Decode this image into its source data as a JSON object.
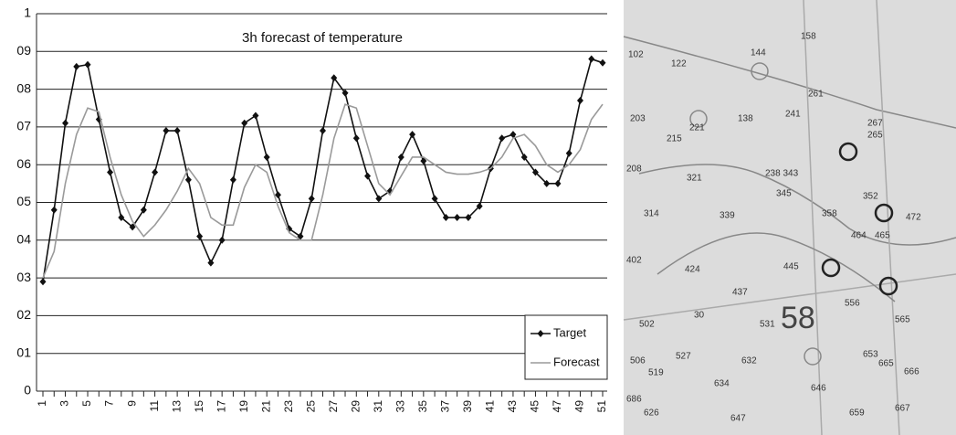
{
  "chart_data": {
    "type": "line",
    "title": "3h forecast of temperature",
    "categories": [
      "1",
      null,
      "3",
      null,
      "5",
      null,
      "7",
      null,
      "9",
      null,
      "11",
      null,
      "13",
      null,
      "15",
      null,
      "17",
      null,
      "19",
      null,
      "21",
      null,
      "23",
      null,
      "25",
      null,
      "27",
      null,
      "29",
      null,
      "31",
      null,
      "33",
      null,
      "35",
      null,
      "37",
      null,
      "39",
      null,
      "41",
      null,
      "43",
      null,
      "45",
      null,
      "47",
      null,
      "49",
      null,
      "51"
    ],
    "series": [
      {
        "name": "Target",
        "color": "#111111",
        "values": [
          0.29,
          0.48,
          0.71,
          0.86,
          0.865,
          0.72,
          0.58,
          0.46,
          0.435,
          0.48,
          0.58,
          0.69,
          0.69,
          0.56,
          0.41,
          0.34,
          0.4,
          0.56,
          0.71,
          0.73,
          0.62,
          0.52,
          0.43,
          0.41,
          0.51,
          0.69,
          0.83,
          0.79,
          0.67,
          0.57,
          0.51,
          0.53,
          0.62,
          0.68,
          0.61,
          0.51,
          0.46,
          0.46,
          0.46,
          0.49,
          0.59,
          0.67,
          0.68,
          0.62,
          0.58,
          0.55,
          0.55,
          0.63,
          0.77,
          0.88,
          0.87
        ]
      },
      {
        "name": "Forecast",
        "color": "#9a9a9a",
        "values": [
          0.3,
          0.37,
          0.55,
          0.68,
          0.75,
          0.74,
          0.62,
          0.52,
          0.45,
          0.41,
          0.44,
          0.48,
          0.53,
          0.59,
          0.55,
          0.46,
          0.44,
          0.44,
          0.54,
          0.6,
          0.58,
          0.49,
          0.42,
          0.4,
          0.4,
          0.52,
          0.67,
          0.76,
          0.75,
          0.65,
          0.55,
          0.52,
          0.57,
          0.62,
          0.62,
          0.6,
          0.58,
          0.575,
          0.575,
          0.58,
          0.59,
          0.62,
          0.67,
          0.68,
          0.65,
          0.6,
          0.58,
          0.6,
          0.64,
          0.72,
          0.76
        ]
      }
    ],
    "ylim": [
      0,
      1
    ],
    "yticks": [
      0,
      {
        "value": 0.1,
        "label": "01"
      },
      {
        "value": 0.2,
        "label": "02"
      },
      {
        "value": 0.3,
        "label": "03"
      },
      {
        "value": 0.4,
        "label": "04"
      },
      {
        "value": 0.5,
        "label": "05"
      },
      {
        "value": 0.6,
        "label": "06"
      },
      {
        "value": 0.7,
        "label": "07"
      },
      {
        "value": 0.8,
        "label": "08"
      },
      {
        "value": 0.9,
        "label": "09"
      },
      1
    ],
    "grid": true,
    "legend": "bottom-right"
  },
  "map": {
    "labels": [
      "102",
      "122",
      "144",
      "158",
      "221",
      "138",
      "241",
      "261",
      "267",
      "265",
      "203",
      "215",
      "208",
      "321",
      "238 343",
      "345",
      "352",
      "314",
      "339",
      "358",
      "464",
      "465",
      "472",
      "402",
      "424",
      "445",
      "437",
      "58",
      "556",
      "502",
      "531",
      "565",
      "506",
      "519",
      "527",
      "632",
      "634",
      "646",
      "653",
      "665",
      "666",
      "626",
      "647",
      "659",
      "667",
      "686",
      "30"
    ]
  }
}
